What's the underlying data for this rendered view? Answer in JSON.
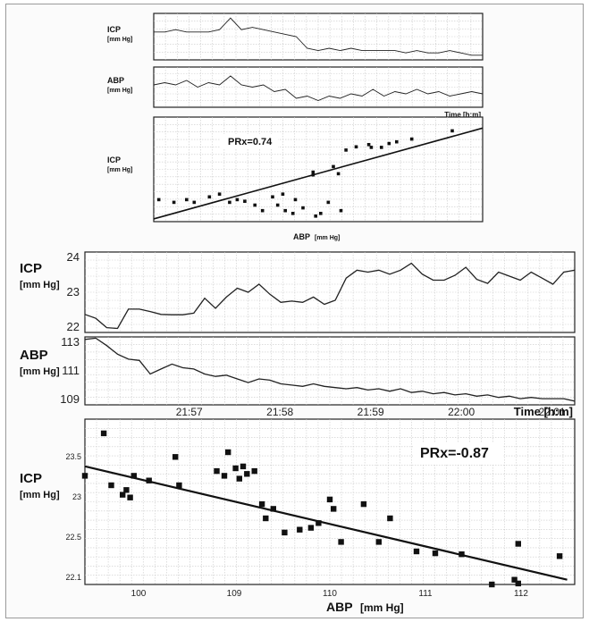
{
  "chart_data": [
    {
      "type": "line",
      "panel": "top-figure-icp",
      "ylabel": "ICP",
      "yunit": "[mm Hg]",
      "xlabel": "",
      "x": [
        0,
        1,
        2,
        3,
        4,
        5,
        6,
        7,
        8,
        9,
        10,
        11,
        12,
        13,
        14,
        15,
        16,
        17,
        18,
        19,
        20,
        21,
        22,
        23,
        24,
        25,
        26,
        27,
        28,
        29,
        30
      ],
      "values": [
        58,
        58,
        59,
        58,
        58,
        58,
        59,
        64,
        59,
        60,
        59,
        58,
        57,
        56,
        51,
        50,
        51,
        50,
        51,
        50,
        50,
        50,
        50,
        49,
        50,
        49,
        49,
        50,
        49,
        48,
        48
      ],
      "ylim": [
        46,
        66
      ],
      "ytick_labels": [
        "",
        "",
        "",
        "",
        ""
      ],
      "grid": true
    },
    {
      "type": "line",
      "panel": "top-figure-abp",
      "ylabel": "ABP",
      "yunit": "[mm Hg]",
      "x": [
        0,
        1,
        2,
        3,
        4,
        5,
        6,
        7,
        8,
        9,
        10,
        11,
        12,
        13,
        14,
        15,
        16,
        17,
        18,
        19,
        20,
        21,
        22,
        23,
        24,
        25,
        26,
        27,
        28,
        29,
        30
      ],
      "values": [
        104,
        105,
        104,
        106,
        103,
        105,
        104,
        108,
        104,
        103,
        104,
        101,
        102,
        98,
        99,
        97,
        99,
        98,
        100,
        99,
        102,
        99,
        101,
        100,
        102,
        100,
        101,
        99,
        100,
        101,
        100
      ],
      "ylim": [
        94,
        112
      ],
      "ytick_labels": [
        "",
        "",
        "",
        ""
      ],
      "xtick_labels": [
        "",
        "",
        "",
        ""
      ],
      "xlabel": "Time",
      "xunit": "[h:m]",
      "grid": true
    },
    {
      "type": "scatter",
      "panel": "top-figure-scatter",
      "ylabel": "ICP",
      "yunit": "[mm Hg]",
      "xlabel": "ABP",
      "xunit": "[mm Hg]",
      "annotation": "PRx=0.74",
      "xlim": [
        95,
        108
      ],
      "ylim": [
        47,
        66
      ],
      "points": [
        [
          95.2,
          51
        ],
        [
          95.8,
          50.5
        ],
        [
          96.3,
          51
        ],
        [
          96.6,
          50.5
        ],
        [
          97.2,
          51.5
        ],
        [
          97.6,
          52
        ],
        [
          98.0,
          50.5
        ],
        [
          98.3,
          51
        ],
        [
          98.6,
          50.7
        ],
        [
          99.0,
          50
        ],
        [
          99.3,
          49
        ],
        [
          99.7,
          51.5
        ],
        [
          99.9,
          50
        ],
        [
          100.1,
          52
        ],
        [
          100.2,
          49
        ],
        [
          100.5,
          48.5
        ],
        [
          100.6,
          51
        ],
        [
          100.9,
          49.5
        ],
        [
          101.4,
          48
        ],
        [
          101.6,
          48.5
        ],
        [
          101.3,
          56
        ],
        [
          101.3,
          55.5
        ],
        [
          102.1,
          57
        ],
        [
          102.3,
          55.7
        ],
        [
          102.6,
          60
        ],
        [
          103.0,
          60.6
        ],
        [
          103.5,
          61
        ],
        [
          103.6,
          60.5
        ],
        [
          104.0,
          60.5
        ],
        [
          104.3,
          61.2
        ],
        [
          104.6,
          61.5
        ],
        [
          105.2,
          62
        ],
        [
          106.8,
          63.5
        ],
        [
          101.9,
          50.5
        ],
        [
          102.4,
          49
        ]
      ],
      "regression_line": [
        [
          95,
          47.5
        ],
        [
          108,
          64
        ]
      ],
      "grid": true
    },
    {
      "type": "line",
      "panel": "bottom-figure-icp",
      "ylabel": "ICP",
      "yunit": "[mm Hg]",
      "ylim": [
        22,
        24
      ],
      "ytick_labels": [
        "24",
        "23",
        "22"
      ],
      "x": [
        0,
        0.5,
        1,
        1.5,
        2,
        2.5,
        3,
        3.5,
        4,
        4.5,
        5,
        5.5,
        6,
        6.5,
        7,
        7.5,
        8,
        8.5,
        9,
        9.5,
        10,
        10.5,
        11,
        11.5,
        12,
        12.5,
        13,
        13.5,
        14,
        14.5,
        15,
        15.5,
        16,
        16.5,
        17,
        17.5,
        18,
        18.5,
        19,
        19.5,
        20,
        20.5,
        21,
        21.5,
        22,
        22.5
      ],
      "values": [
        22.45,
        22.35,
        22.12,
        22.1,
        22.58,
        22.58,
        22.52,
        22.45,
        22.44,
        22.44,
        22.48,
        22.85,
        22.6,
        22.88,
        23.1,
        23.0,
        23.2,
        22.95,
        22.75,
        22.78,
        22.75,
        22.88,
        22.7,
        22.8,
        23.35,
        23.55,
        23.5,
        23.55,
        23.45,
        23.55,
        23.72,
        23.45,
        23.3,
        23.3,
        23.42,
        23.62,
        23.32,
        23.22,
        23.5,
        23.4,
        23.3,
        23.5,
        23.35,
        23.2,
        23.5,
        23.55
      ],
      "grid": true
    },
    {
      "type": "line",
      "panel": "bottom-figure-abp",
      "ylabel": "ABP",
      "yunit": "[mm Hg]",
      "ylim": [
        107.5,
        113
      ],
      "ytick_labels": [
        "113",
        "111",
        "109"
      ],
      "xtick_labels": [
        "21:57",
        "21:58",
        "21:59",
        "22:00",
        "22:01"
      ],
      "xlabel": "Time",
      "xunit": "[h:m]",
      "x": [
        0,
        0.5,
        1,
        1.5,
        2,
        2.5,
        3,
        3.5,
        4,
        4.5,
        5,
        5.5,
        6,
        6.5,
        7,
        7.5,
        8,
        8.5,
        9,
        9.5,
        10,
        10.5,
        11,
        11.5,
        12,
        12.5,
        13,
        13.5,
        14,
        14.5,
        15,
        15.5,
        16,
        16.5,
        17,
        17.5,
        18,
        18.5,
        19,
        19.5,
        20,
        20.5,
        21,
        21.5,
        22,
        22.5
      ],
      "values": [
        112.8,
        112.9,
        112.3,
        111.6,
        111.2,
        111.1,
        110.0,
        110.4,
        110.8,
        110.5,
        110.4,
        110.0,
        109.8,
        109.9,
        109.6,
        109.3,
        109.6,
        109.5,
        109.2,
        109.1,
        109.0,
        109.2,
        109.0,
        108.9,
        108.8,
        108.9,
        108.7,
        108.8,
        108.6,
        108.8,
        108.5,
        108.6,
        108.4,
        108.5,
        108.3,
        108.4,
        108.2,
        108.3,
        108.1,
        108.2,
        108.0,
        108.1,
        108.0,
        108.0,
        108.0,
        107.8
      ],
      "grid": true
    },
    {
      "type": "scatter",
      "panel": "bottom-figure-scatter",
      "ylabel": "ICP",
      "yunit": "[mm Hg]",
      "xlabel": "ABP",
      "xunit": "[mm Hg]",
      "annotation": "PRx=-0.87",
      "xlim": [
        99.8,
        112.8
      ],
      "ylim": [
        22.05,
        23.8
      ],
      "xtick_labels": [
        "100",
        "",
        "109",
        "",
        "110",
        "",
        "111",
        "",
        "112"
      ],
      "ytick_labels": [
        "23.5",
        "23",
        "22.5",
        "22.1"
      ],
      "points": [
        [
          99.8,
          23.2
        ],
        [
          100.3,
          23.65
        ],
        [
          100.5,
          23.1
        ],
        [
          100.8,
          23.0
        ],
        [
          101.0,
          22.97
        ],
        [
          100.9,
          23.05
        ],
        [
          101.1,
          23.2
        ],
        [
          101.5,
          23.15
        ],
        [
          102.2,
          23.4
        ],
        [
          102.3,
          23.1
        ],
        [
          103.3,
          23.25
        ],
        [
          103.5,
          23.2
        ],
        [
          103.6,
          23.45
        ],
        [
          103.8,
          23.28
        ],
        [
          103.9,
          23.17
        ],
        [
          104.0,
          23.3
        ],
        [
          104.1,
          23.22
        ],
        [
          104.3,
          23.25
        ],
        [
          104.5,
          22.9
        ],
        [
          104.6,
          22.75
        ],
        [
          104.8,
          22.85
        ],
        [
          105.1,
          22.6
        ],
        [
          105.5,
          22.63
        ],
        [
          105.8,
          22.65
        ],
        [
          106.0,
          22.7
        ],
        [
          106.3,
          22.95
        ],
        [
          106.4,
          22.85
        ],
        [
          106.6,
          22.5
        ],
        [
          107.2,
          22.9
        ],
        [
          107.6,
          22.5
        ],
        [
          107.9,
          22.75
        ],
        [
          108.6,
          22.4
        ],
        [
          109.1,
          22.38
        ],
        [
          109.8,
          22.37
        ],
        [
          111.3,
          22.48
        ],
        [
          111.2,
          22.1
        ],
        [
          112.4,
          22.35
        ],
        [
          110.6,
          22.05
        ],
        [
          111.3,
          22.06
        ]
      ],
      "regression_line": [
        [
          99.8,
          23.3
        ],
        [
          112.6,
          22.1
        ]
      ],
      "grid": true
    }
  ]
}
